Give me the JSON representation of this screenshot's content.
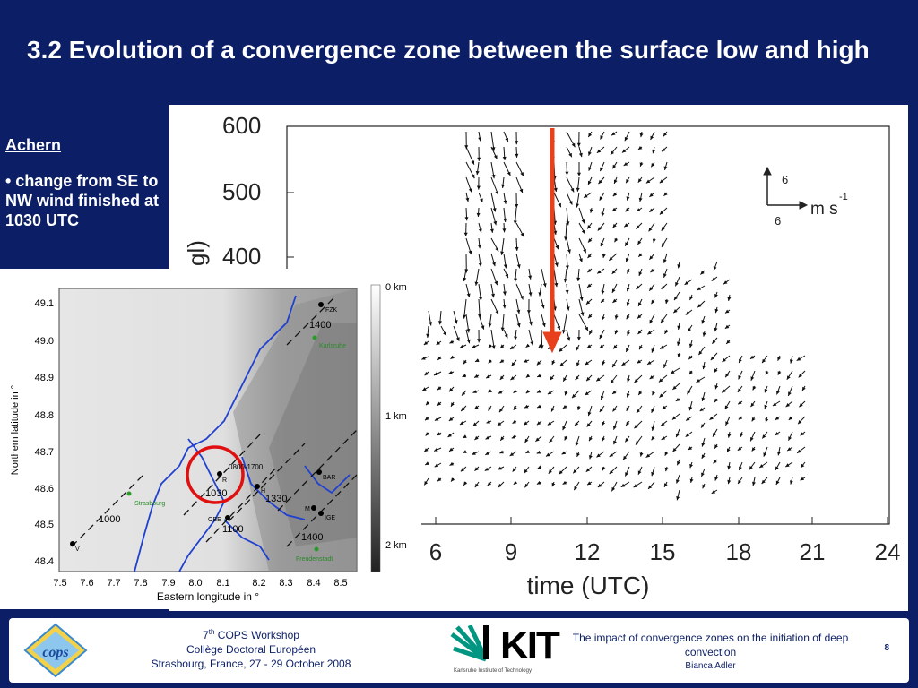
{
  "slide": {
    "title": "3.2 Evolution of a convergence zone between the surface low and high"
  },
  "sidebar": {
    "heading": "Achern",
    "bullet": "• change from SE to NW wind finished at 1030 UTC"
  },
  "wind_plot": {
    "y_ticks": [
      "600",
      "500",
      "400"
    ],
    "y_label_fragment": "gl)",
    "x_ticks": [
      "6",
      "9",
      "12",
      "15",
      "18",
      "21",
      "24"
    ],
    "x_label": "time (UTC)",
    "ref_vector": {
      "vertical": "6",
      "horizontal": "6",
      "unit_base": "m s",
      "unit_exp": "-1"
    },
    "arrow_color": "#e8401c"
  },
  "map": {
    "lat_ticks": [
      "49.1",
      "49.0",
      "48.9",
      "48.8",
      "48.7",
      "48.6",
      "48.5",
      "48.4"
    ],
    "lon_ticks": [
      "7.5",
      "7.6",
      "7.7",
      "7.8",
      "7.9",
      "8.0",
      "8.1",
      "8.2",
      "8.3",
      "8.4",
      "8.5"
    ],
    "ylabel": "Northern latitude in °",
    "xlabel": "Eastern longitude in °",
    "colorbar": [
      "0 km",
      "1 km",
      "2 km"
    ],
    "station_labels": [
      "FZK",
      "R",
      "H",
      "BAR",
      "M",
      "IGE",
      "OBE",
      "V"
    ],
    "time_labels": [
      "1400",
      "0800-1700",
      "1030",
      "1330",
      "1100",
      "1400",
      "1000"
    ],
    "towns": [
      "Karlsruhe",
      "Strasbourg",
      "Freudenstadt"
    ],
    "river_color": "#2040d0",
    "circle_color": "#e01010"
  },
  "footer": {
    "workshop_prefix": "7",
    "workshop_sup": "th",
    "workshop_rest": " COPS Workshop",
    "college": "Collège Doctoral Européen",
    "place_date": "Strasbourg, France, 27 - 29 October 2008",
    "talk_title": "The impact of convergence zones on the initiation of deep convection",
    "author": "Bianca Adler",
    "page": "8",
    "kit_word": "KIT",
    "kit_sub": "Karlsruhe Institute of Technology",
    "cops_logo": "cops"
  }
}
